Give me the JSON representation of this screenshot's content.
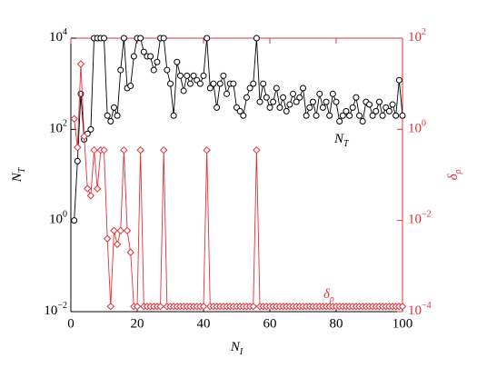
{
  "chart_data": {
    "type": "line",
    "x": [
      1,
      2,
      3,
      4,
      5,
      6,
      7,
      8,
      9,
      10,
      11,
      12,
      13,
      14,
      15,
      16,
      17,
      18,
      19,
      20,
      21,
      22,
      23,
      24,
      25,
      26,
      27,
      28,
      29,
      30,
      31,
      32,
      33,
      34,
      35,
      36,
      37,
      38,
      39,
      40,
      41,
      42,
      43,
      44,
      45,
      46,
      47,
      48,
      49,
      50,
      51,
      52,
      53,
      54,
      55,
      56,
      57,
      58,
      59,
      60,
      61,
      62,
      63,
      64,
      65,
      66,
      67,
      68,
      69,
      70,
      71,
      72,
      73,
      74,
      75,
      76,
      77,
      78,
      79,
      80,
      81,
      82,
      83,
      84,
      85,
      86,
      87,
      88,
      89,
      90,
      91,
      92,
      93,
      94,
      95,
      96,
      97,
      98,
      99,
      100
    ],
    "series": [
      {
        "name": {
          "text": "N",
          "sub": "T"
        },
        "color": "#000000",
        "marker": "circle",
        "axis": "y",
        "values": [
          1,
          20,
          600,
          60,
          80,
          100,
          10000,
          10000,
          10000,
          10000,
          200,
          150,
          300,
          200,
          2000,
          10000,
          800,
          900,
          4000,
          10000,
          10000,
          5000,
          4000,
          4000,
          2000,
          3000,
          10000,
          10000,
          2000,
          1000,
          200,
          3000,
          1500,
          700,
          1500,
          1000,
          1500,
          1200,
          1000,
          1500,
          10000,
          800,
          1000,
          300,
          1000,
          1500,
          600,
          1000,
          1000,
          300,
          250,
          200,
          500,
          800,
          1000,
          10000,
          400,
          1000,
          500,
          300,
          400,
          800,
          300,
          500,
          250,
          350,
          600,
          400,
          500,
          800,
          200,
          300,
          400,
          200,
          600,
          300,
          400,
          200,
          600,
          400,
          150,
          200,
          250,
          200,
          300,
          500,
          200,
          150,
          400,
          350,
          200,
          250,
          400,
          200,
          300,
          250,
          350,
          200,
          1200,
          200
        ]
      },
      {
        "name": {
          "text": "δ",
          "sub": "ρ"
        },
        "color": "#e0303a",
        "marker": "diamond",
        "axis": "y2",
        "values": [
          1.7,
          0.4,
          27,
          0.7,
          0.05,
          0.035,
          0.35,
          0.05,
          0.35,
          0.35,
          0.004,
          0.00013,
          0.006,
          0.003,
          0.006,
          0.35,
          0.006,
          0.002,
          0.00013,
          0.00013,
          0.35,
          0.00013,
          0.00013,
          0.00013,
          0.00013,
          0.00013,
          0.00013,
          0.35,
          0.00013,
          0.00013,
          0.00013,
          0.00013,
          0.00013,
          0.00013,
          0.00013,
          0.00013,
          0.00013,
          0.00013,
          0.00013,
          0.00013,
          0.35,
          0.00013,
          0.00013,
          0.00013,
          0.00013,
          0.00013,
          0.00013,
          0.00013,
          0.00013,
          0.00013,
          0.00013,
          0.00013,
          0.00013,
          0.00013,
          0.00013,
          0.35,
          0.00013,
          0.00013,
          0.00013,
          0.00013,
          0.00013,
          0.00013,
          0.00013,
          0.00013,
          0.00013,
          0.00013,
          0.00013,
          0.00013,
          0.00013,
          0.00013,
          0.00013,
          0.00013,
          0.00013,
          0.00013,
          0.00013,
          0.00013,
          0.00013,
          0.00013,
          0.00013,
          0.00013,
          0.00013,
          0.00013,
          0.00013,
          0.00013,
          0.00013,
          0.00013,
          0.00013,
          0.00013,
          0.00013,
          0.00013,
          0.00013,
          0.00013,
          0.00013,
          0.00013,
          0.00013,
          0.00013,
          0.00013,
          0.00013,
          0.00013,
          0.00013
        ]
      }
    ],
    "xlabel": {
      "text": "N",
      "sub": "I"
    },
    "ylabel": {
      "text": "N",
      "sub": "T"
    },
    "y2label": {
      "text": "δ",
      "sub": "ρ"
    },
    "xlim": [
      0,
      100
    ],
    "xticks": [
      0,
      20,
      40,
      60,
      80,
      100
    ],
    "ylim": [
      0.01,
      10000
    ],
    "yscale": "log",
    "yticks": [
      {
        "value": 0.01,
        "label": "10",
        "exponent": "−2"
      },
      {
        "value": 1,
        "label": "10",
        "exponent": "0"
      },
      {
        "value": 100,
        "label": "10",
        "exponent": "2"
      },
      {
        "value": 10000,
        "label": "10",
        "exponent": "4"
      }
    ],
    "y2lim": [
      0.0001,
      100
    ],
    "y2scale": "log",
    "y2ticks": [
      {
        "value": 0.0001,
        "label": "10",
        "exponent": "−4"
      },
      {
        "value": 0.01,
        "label": "10",
        "exponent": "−2"
      },
      {
        "value": 1,
        "label": "10",
        "exponent": "0"
      },
      {
        "value": 100,
        "label": "10",
        "exponent": "2"
      }
    ]
  }
}
